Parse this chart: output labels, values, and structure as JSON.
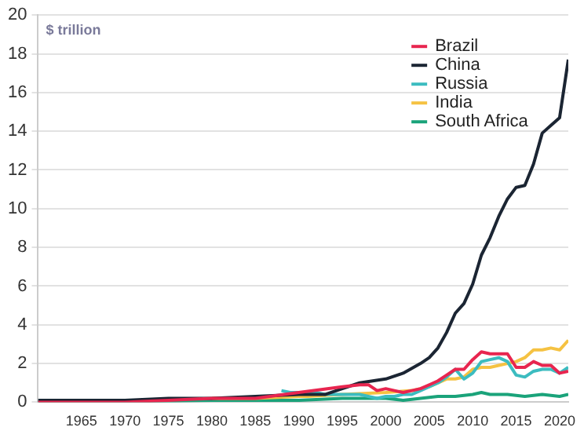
{
  "chart_data": {
    "type": "line",
    "ylabel": "$ trillion",
    "xlim": [
      1960,
      2021
    ],
    "xticks": [
      1965,
      1970,
      1975,
      1980,
      1985,
      1990,
      1995,
      2000,
      2005,
      2010,
      2015,
      2020
    ],
    "ylim": [
      0,
      20
    ],
    "yticks": [
      0,
      2,
      4,
      6,
      8,
      10,
      12,
      14,
      16,
      18,
      20
    ],
    "grid": "y",
    "legend": "top right",
    "marker": "none",
    "line_style": "solid",
    "series": [
      {
        "name": "Brazil",
        "color": "#e8254f",
        "x": [
          1960,
          1965,
          1970,
          1975,
          1980,
          1985,
          1990,
          1995,
          1997,
          1998,
          1999,
          2000,
          2001,
          2002,
          2003,
          2004,
          2005,
          2006,
          2007,
          2008,
          2009,
          2010,
          2011,
          2012,
          2013,
          2014,
          2015,
          2016,
          2017,
          2018,
          2019,
          2020,
          2021
        ],
        "values": [
          0,
          0,
          0,
          0.1,
          0.2,
          0.2,
          0.5,
          0.8,
          0.9,
          0.9,
          0.6,
          0.7,
          0.6,
          0.5,
          0.6,
          0.7,
          0.9,
          1.1,
          1.4,
          1.7,
          1.7,
          2.2,
          2.6,
          2.5,
          2.5,
          2.5,
          1.8,
          1.8,
          2.1,
          1.9,
          1.9,
          1.5,
          1.6
        ]
      },
      {
        "name": "China",
        "color": "#1b2533",
        "x": [
          1960,
          1965,
          1970,
          1975,
          1980,
          1985,
          1990,
          1993,
          1995,
          1997,
          2000,
          2002,
          2004,
          2005,
          2006,
          2007,
          2008,
          2009,
          2010,
          2011,
          2012,
          2013,
          2014,
          2015,
          2016,
          2017,
          2018,
          2019,
          2020,
          2021
        ],
        "values": [
          0.1,
          0.1,
          0.1,
          0.2,
          0.2,
          0.3,
          0.4,
          0.4,
          0.7,
          1,
          1.2,
          1.5,
          2,
          2.3,
          2.8,
          3.6,
          4.6,
          5.1,
          6.1,
          7.6,
          8.5,
          9.6,
          10.5,
          11.1,
          11.2,
          12.3,
          13.9,
          14.3,
          14.7,
          17.7
        ]
      },
      {
        "name": "Russia",
        "color": "#3cbcc0",
        "x": [
          1988,
          1989,
          1990,
          1991,
          1992,
          1993,
          1994,
          1995,
          1996,
          1997,
          1998,
          1999,
          2000,
          2001,
          2002,
          2003,
          2004,
          2005,
          2006,
          2007,
          2008,
          2009,
          2010,
          2011,
          2012,
          2013,
          2014,
          2015,
          2016,
          2017,
          2018,
          2019,
          2020,
          2021
        ],
        "values": [
          0.6,
          0.5,
          0.5,
          0.5,
          0.5,
          0.4,
          0.4,
          0.4,
          0.4,
          0.4,
          0.3,
          0.2,
          0.3,
          0.3,
          0.4,
          0.4,
          0.6,
          0.8,
          1,
          1.3,
          1.7,
          1.2,
          1.5,
          2.1,
          2.2,
          2.3,
          2.1,
          1.4,
          1.3,
          1.6,
          1.7,
          1.7,
          1.5,
          1.8
        ]
      },
      {
        "name": "India",
        "color": "#f5c242",
        "x": [
          1980,
          1985,
          1990,
          1991,
          1995,
          2000,
          2003,
          2005,
          2007,
          2008,
          2009,
          2010,
          2011,
          2012,
          2013,
          2014,
          2015,
          2016,
          2017,
          2018,
          2019,
          2020,
          2021
        ],
        "values": [
          0.2,
          0.2,
          0.3,
          0.3,
          0.4,
          0.5,
          0.6,
          0.8,
          1.2,
          1.2,
          1.3,
          1.7,
          1.8,
          1.8,
          1.9,
          2,
          2.1,
          2.3,
          2.7,
          2.7,
          2.8,
          2.7,
          3.2
        ]
      },
      {
        "name": "South Africa",
        "color": "#1aa37a",
        "x": [
          1960,
          1970,
          1980,
          1985,
          1990,
          1995,
          2000,
          2002,
          2004,
          2006,
          2008,
          2010,
          2011,
          2012,
          2014,
          2016,
          2018,
          2020,
          2021
        ],
        "values": [
          0,
          0,
          0.1,
          0.1,
          0.1,
          0.2,
          0.2,
          0.1,
          0.2,
          0.3,
          0.3,
          0.4,
          0.5,
          0.4,
          0.4,
          0.3,
          0.4,
          0.3,
          0.4
        ]
      }
    ]
  }
}
